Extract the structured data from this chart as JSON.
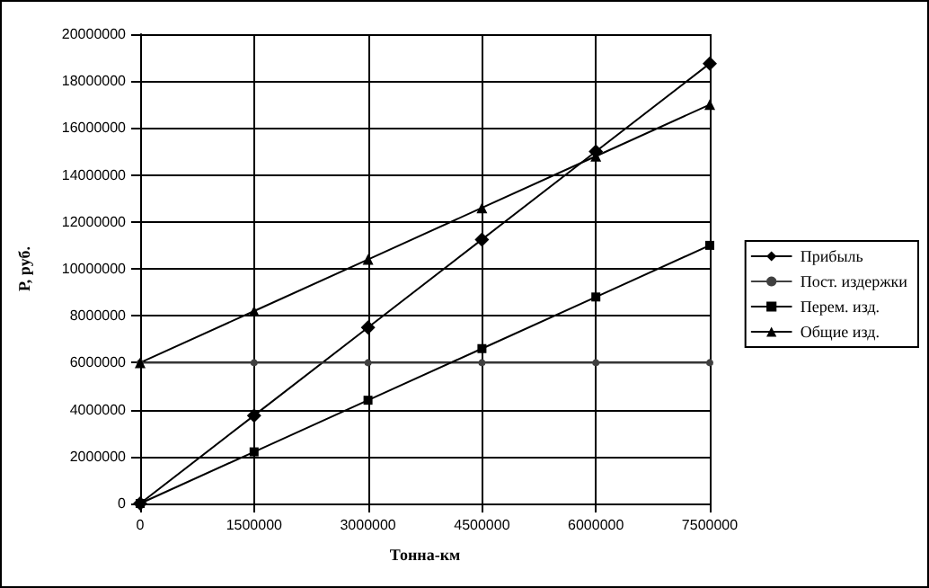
{
  "chart_data": {
    "type": "line",
    "xlabel": "Тонна-км",
    "ylabel": "Р, руб.",
    "x": [
      0,
      1500000,
      3000000,
      4500000,
      6000000,
      7500000
    ],
    "xlim": [
      0,
      7500000
    ],
    "xticks": [
      0,
      1500000,
      3000000,
      4500000,
      6000000,
      7500000
    ],
    "ylim": [
      0,
      20000000
    ],
    "yticks": [
      0,
      2000000,
      4000000,
      6000000,
      8000000,
      10000000,
      12000000,
      14000000,
      16000000,
      18000000,
      20000000
    ],
    "grid": true,
    "legend": "right",
    "series": [
      {
        "name": "Прибыль",
        "color": "#000000",
        "marker": "diamond",
        "values": [
          0,
          3750000,
          7500000,
          11250000,
          15000000,
          18750000
        ]
      },
      {
        "name": "Пост. издержки",
        "color": "#404040",
        "marker": "circle",
        "values": [
          6000000,
          6000000,
          6000000,
          6000000,
          6000000,
          6000000
        ]
      },
      {
        "name": "Перем. изд.",
        "color": "#000000",
        "marker": "square",
        "values": [
          0,
          2200000,
          4400000,
          6600000,
          8800000,
          11000000
        ]
      },
      {
        "name": "Общие изд.",
        "color": "#000000",
        "marker": "triangle",
        "values": [
          6000000,
          8200000,
          10400000,
          12600000,
          14800000,
          17000000
        ]
      }
    ]
  }
}
